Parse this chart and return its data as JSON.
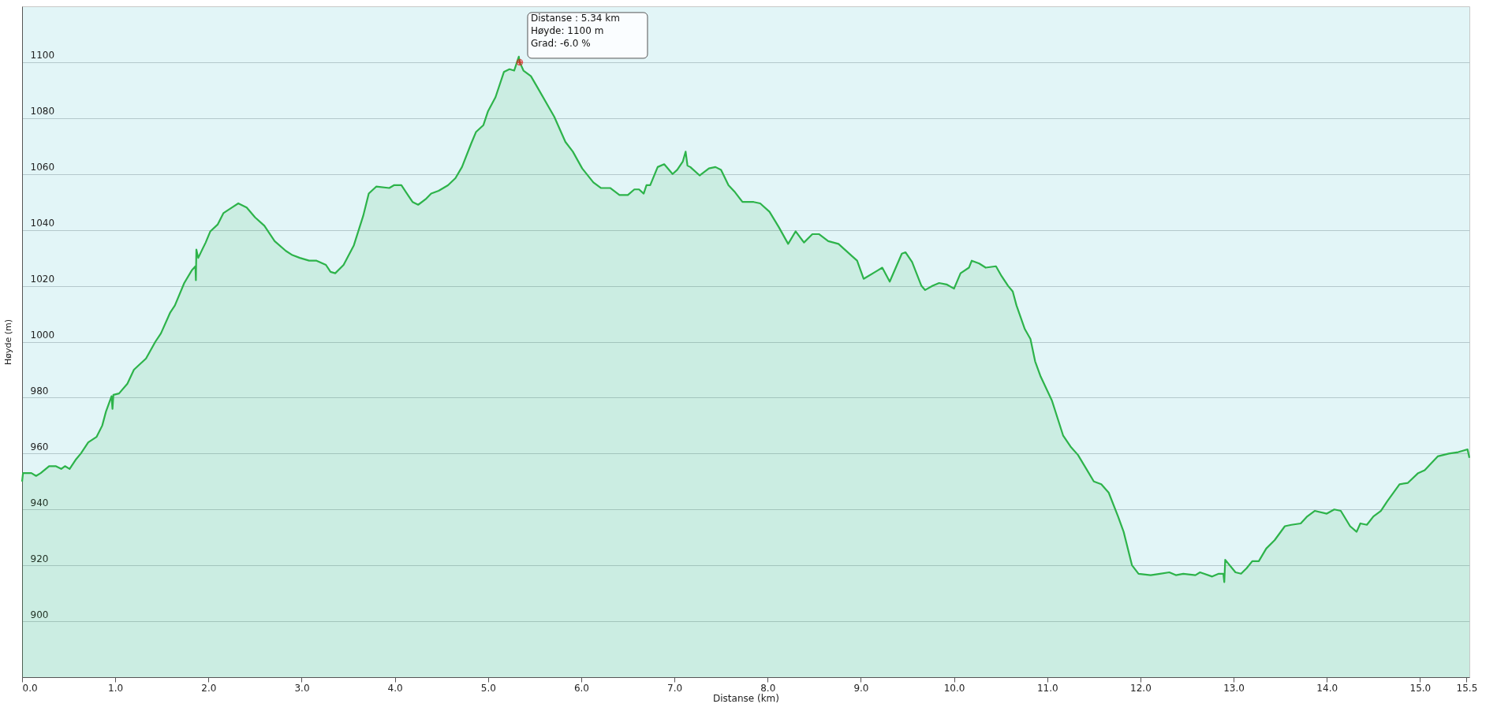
{
  "chart_data": {
    "type": "area",
    "xlabel": "Distanse  (km)",
    "ylabel": "Høyde (m)",
    "xlim": [
      0,
      15.53
    ],
    "ylim": [
      880,
      1120
    ],
    "xticks": [
      {
        "value": 0,
        "label": "0.0"
      },
      {
        "value": 1,
        "label": "1.0"
      },
      {
        "value": 2,
        "label": "2.0"
      },
      {
        "value": 3,
        "label": "3.0"
      },
      {
        "value": 4,
        "label": "4.0"
      },
      {
        "value": 5,
        "label": "5.0"
      },
      {
        "value": 6,
        "label": "6.0"
      },
      {
        "value": 7,
        "label": "7.0"
      },
      {
        "value": 8,
        "label": "8.0"
      },
      {
        "value": 9,
        "label": "9.0"
      },
      {
        "value": 10,
        "label": "10.0"
      },
      {
        "value": 11,
        "label": "11.0"
      },
      {
        "value": 12,
        "label": "12.0"
      },
      {
        "value": 13,
        "label": "13.0"
      },
      {
        "value": 14,
        "label": "14.0"
      },
      {
        "value": 15,
        "label": "15.0"
      },
      15.5
    ],
    "yticks": [
      900,
      920,
      940,
      960,
      980,
      1000,
      1020,
      1040,
      1060,
      1080,
      1100
    ],
    "grid": "y",
    "annotations": [
      {
        "text": "Distanse  : 5.34 km\nHøyde: 1100 m\nGrad: -6.0 %",
        "x": 5.34,
        "y": 1100
      }
    ],
    "series": [
      {
        "color": "#2db34a",
        "x": [
          0,
          0.01,
          0.05,
          0.1,
          0.15,
          0.2,
          0.29,
          0.36,
          0.42,
          0.46,
          0.51,
          0.58,
          0.63,
          0.71,
          0.8,
          0.86,
          0.9,
          0.96,
          0.97,
          0.98,
          1.04,
          1.13,
          1.2,
          1.33,
          1.43,
          1.49,
          1.59,
          1.64,
          1.74,
          1.82,
          1.86,
          1.865,
          1.87,
          1.89,
          1.97,
          2.02,
          2.1,
          2.16,
          2.25,
          2.32,
          2.41,
          2.5,
          2.6,
          2.71,
          2.83,
          2.9,
          2.98,
          3.08,
          3.16,
          3.26,
          3.31,
          3.36,
          3.45,
          3.56,
          3.66,
          3.72,
          3.8,
          3.94,
          3.99,
          4.07,
          4.12,
          4.19,
          4.25,
          4.33,
          4.39,
          4.47,
          4.57,
          4.65,
          4.72,
          4.82,
          4.87,
          4.95,
          5.0,
          5.08,
          5.17,
          5.23,
          5.28,
          5.33,
          5.34,
          5.38,
          5.46,
          5.53,
          5.71,
          5.83,
          5.91,
          6.01,
          6.13,
          6.21,
          6.31,
          6.41,
          6.5,
          6.57,
          6.62,
          6.67,
          6.7,
          6.74,
          6.82,
          6.89,
          6.98,
          7.03,
          7.09,
          7.12,
          7.14,
          7.17,
          7.27,
          7.37,
          7.44,
          7.5,
          7.58,
          7.65,
          7.73,
          7.85,
          7.92,
          8.02,
          8.12,
          8.22,
          8.3,
          8.39,
          8.48,
          8.55,
          8.65,
          8.76,
          8.91,
          8.96,
          9.03,
          9.18,
          9.23,
          9.31,
          9.44,
          9.48,
          9.55,
          9.65,
          9.69,
          9.77,
          9.84,
          9.92,
          10.0,
          10.07,
          10.16,
          10.19,
          10.27,
          10.34,
          10.45,
          10.51,
          10.58,
          10.63,
          10.67,
          10.76,
          10.82,
          10.87,
          10.93,
          11.05,
          11.17,
          11.25,
          11.33,
          11.42,
          11.5,
          11.58,
          11.66,
          11.76,
          11.82,
          11.91,
          11.98,
          12.11,
          12.21,
          12.31,
          12.38,
          12.46,
          12.59,
          12.64,
          12.77,
          12.84,
          12.89,
          12.9,
          12.91,
          13.02,
          13.08,
          13.14,
          13.2,
          13.27,
          13.35,
          13.44,
          13.55,
          13.62,
          13.72,
          13.79,
          13.87,
          14.0,
          14.08,
          14.15,
          14.25,
          14.32,
          14.36,
          14.43,
          14.5,
          14.58,
          14.65,
          14.78,
          14.87,
          14.98,
          15.05,
          15.19,
          15.31,
          15.41,
          15.51,
          15.53
        ],
        "values": [
          950,
          953,
          953,
          953,
          952,
          953,
          955.5,
          955.5,
          954.5,
          955.5,
          954.5,
          958,
          960,
          964,
          966,
          970,
          975,
          980.5,
          976,
          981,
          981.5,
          985,
          990,
          994,
          1000,
          1003,
          1010.5,
          1013,
          1021,
          1025.5,
          1027,
          1022,
          1033,
          1030,
          1035.5,
          1039.5,
          1042,
          1046,
          1048,
          1049.5,
          1048,
          1044.5,
          1041.5,
          1036,
          1032.5,
          1031,
          1030,
          1029,
          1029,
          1027.5,
          1025,
          1024.5,
          1027.5,
          1034.5,
          1045,
          1053,
          1055.5,
          1055,
          1056,
          1056,
          1053.5,
          1050,
          1049,
          1051,
          1053,
          1054,
          1056,
          1058.5,
          1062.5,
          1071,
          1075,
          1077.5,
          1082.5,
          1087.5,
          1096.5,
          1097.5,
          1097,
          1102,
          1100,
          1097,
          1095,
          1091,
          1080.5,
          1071.5,
          1068,
          1062,
          1057,
          1055,
          1055,
          1052.5,
          1052.5,
          1054.5,
          1054.5,
          1053,
          1056,
          1056,
          1062.5,
          1063.5,
          1060,
          1061.5,
          1064.5,
          1068,
          1063,
          1062.5,
          1059.5,
          1062,
          1062.5,
          1061.5,
          1056,
          1053.5,
          1050,
          1050,
          1049.5,
          1046.5,
          1041,
          1035,
          1039.5,
          1035.5,
          1038.5,
          1038.5,
          1036,
          1035,
          1030.5,
          1029,
          1022.5,
          1025.5,
          1026.5,
          1021.5,
          1031.5,
          1032,
          1028.5,
          1020,
          1018.5,
          1020,
          1021,
          1020.5,
          1019,
          1024.5,
          1026.5,
          1029,
          1028,
          1026.5,
          1027,
          1023.5,
          1020,
          1018,
          1013,
          1004.5,
          1001,
          993,
          987.5,
          979,
          966.5,
          962.5,
          959.5,
          954.5,
          950,
          949,
          946,
          937.5,
          932,
          920,
          917,
          916.5,
          917,
          917.5,
          916.5,
          917,
          916.5,
          917.5,
          916,
          917,
          917,
          914,
          922,
          917.5,
          917,
          919,
          921.5,
          921.5,
          926,
          929,
          934,
          934.5,
          935,
          937.5,
          939.5,
          938.5,
          940,
          939.5,
          934,
          932,
          935,
          934.5,
          937.5,
          939.5,
          943,
          949,
          949.5,
          953,
          954,
          959,
          960,
          960.5,
          961.5,
          958.5
        ]
      }
    ]
  }
}
